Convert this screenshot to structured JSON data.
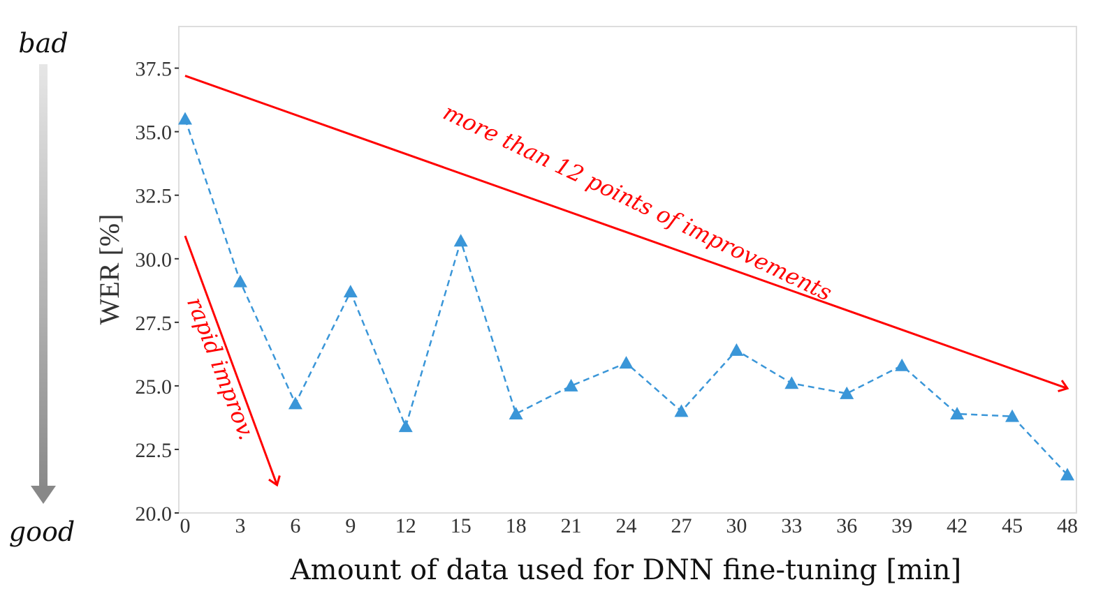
{
  "chart_data": {
    "type": "line",
    "title": "",
    "xlabel": "Amount of data used for DNN fine-tuning [min]",
    "ylabel": "WER [%]",
    "x": [
      0,
      3,
      6,
      9,
      12,
      15,
      18,
      21,
      24,
      27,
      30,
      33,
      36,
      39,
      42,
      45,
      48
    ],
    "series": [
      {
        "values": [
          35.5,
          29.1,
          24.3,
          28.7,
          23.4,
          30.7,
          23.9,
          25.0,
          25.9,
          24.0,
          26.4,
          25.1,
          24.7,
          25.8,
          23.9,
          23.8,
          21.5
        ],
        "color": "#3a96d8",
        "line_style": "dashed",
        "marker": "triangle"
      }
    ],
    "xticks": [
      "0",
      "3",
      "6",
      "9",
      "12",
      "15",
      "18",
      "21",
      "24",
      "27",
      "30",
      "33",
      "36",
      "39",
      "42",
      "45",
      "48"
    ],
    "yticks": [
      "20.0",
      "22.5",
      "25.0",
      "27.5",
      "30.0",
      "32.5",
      "35.0",
      "37.5"
    ],
    "ylim": [
      20.0,
      39.0
    ],
    "xlim": [
      0,
      48
    ],
    "grid": false,
    "side_labels": {
      "top": "bad",
      "bottom": "good"
    },
    "annotations": [
      {
        "text": "more than 12 points of improvements",
        "color": "#ff0000",
        "arrow_from": [
          0,
          37.2
        ],
        "arrow_to": [
          48,
          24.9
        ]
      },
      {
        "text": "rapid improv.",
        "color": "#ff0000",
        "arrow_from": [
          0,
          30.9
        ],
        "arrow_to": [
          5,
          21.1
        ]
      }
    ]
  }
}
